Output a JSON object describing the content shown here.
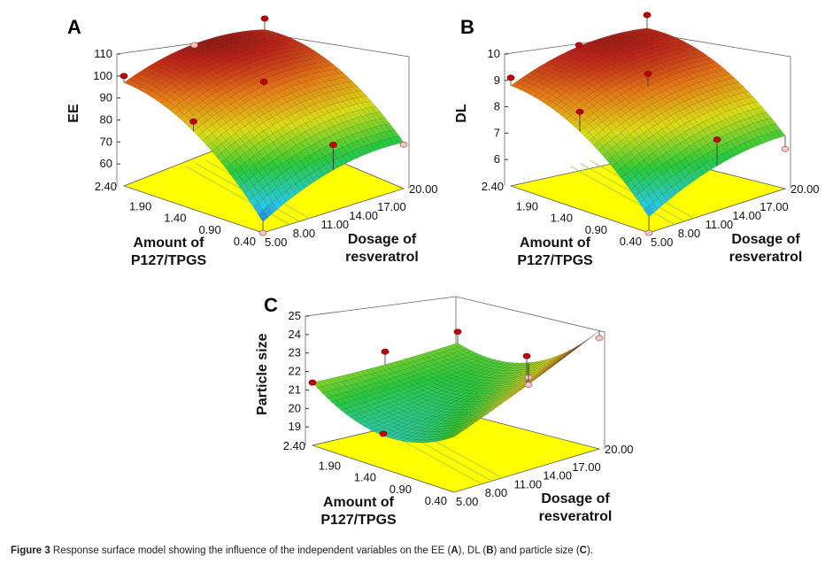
{
  "caption": {
    "figure_label": "Figure 3",
    "text_before": " Response surface model showing the influence of the independent variables on the EE (",
    "a": "A",
    "mid1": "), DL (",
    "b": "B",
    "mid2": ") and particle size (",
    "c": "C",
    "end": ")."
  },
  "chart_data": [
    {
      "panel": "A",
      "type": "surface3d",
      "zlabel": "EE",
      "xlabel": "Amount of P127/TPGS",
      "ylabel": "Dosage of resveratrol",
      "x_ticks": [
        "2.40",
        "1.90",
        "1.40",
        "0.90",
        "0.40"
      ],
      "y_ticks": [
        "5.00",
        "8.00",
        "11.00",
        "14.00",
        "17.00",
        "20.00"
      ],
      "z_ticks": [
        "60",
        "70",
        "80",
        "90",
        "100",
        "110"
      ],
      "xlim": [
        0.4,
        2.4
      ],
      "ylim": [
        5.0,
        20.0
      ],
      "zlim": [
        50,
        110
      ],
      "surface_corners": {
        "p2.40_r5": 95,
        "p0.40_r5": 55,
        "p0.40_r20": 75,
        "p2.40_r20": 95,
        "max": 102
      },
      "design_points": [
        {
          "x": 2.4,
          "y": 5,
          "z": 100
        },
        {
          "x": 1.4,
          "y": 5,
          "z": 90
        },
        {
          "x": 2.4,
          "y": 20,
          "z": 106
        },
        {
          "x": 1.4,
          "y": 12.5,
          "z": 98
        },
        {
          "x": 2.4,
          "y": 12.5,
          "z": 104
        },
        {
          "x": 0.4,
          "y": 12.5,
          "z": 80
        },
        {
          "x": 0.4,
          "y": 20,
          "z": 70
        },
        {
          "x": 0.4,
          "y": 5,
          "z": 50
        }
      ]
    },
    {
      "panel": "B",
      "type": "surface3d",
      "zlabel": "DL",
      "xlabel": "Amount of P127/TPGS",
      "ylabel": "Dosage of resveratrol",
      "x_ticks": [
        "2.40",
        "1.90",
        "1.40",
        "0.90",
        "0.40"
      ],
      "y_ticks": [
        "5.00",
        "8.00",
        "11.00",
        "14.00",
        "17.00",
        "20.00"
      ],
      "z_ticks": [
        "6",
        "7",
        "8",
        "9",
        "10"
      ],
      "xlim": [
        0.4,
        2.4
      ],
      "ylim": [
        5.0,
        20.0
      ],
      "zlim": [
        5,
        10
      ],
      "surface_corners": {
        "p2.40_r5": 8.8,
        "p0.40_r5": 5.7,
        "p0.40_r20": 7.0,
        "p2.40_r20": 9.5,
        "max": 9.6
      },
      "design_points": [
        {
          "x": 2.4,
          "y": 5,
          "z": 9.1
        },
        {
          "x": 1.4,
          "y": 5,
          "z": 8.7
        },
        {
          "x": 2.4,
          "y": 20,
          "z": 9.8
        },
        {
          "x": 1.4,
          "y": 12.5,
          "z": 9.3
        },
        {
          "x": 2.4,
          "y": 12.5,
          "z": 9.5
        },
        {
          "x": 0.4,
          "y": 12.5,
          "z": 7.7
        },
        {
          "x": 0.4,
          "y": 20,
          "z": 6.5
        },
        {
          "x": 0.4,
          "y": 5,
          "z": 5.0
        }
      ]
    },
    {
      "panel": "C",
      "type": "surface3d",
      "zlabel": "Particle size",
      "xlabel": "Amount of P127/TPGS",
      "ylabel": "Dosage of resveratrol",
      "x_ticks": [
        "2.40",
        "1.90",
        "1.40",
        "0.90",
        "0.40"
      ],
      "y_ticks": [
        "5.00",
        "8.00",
        "11.00",
        "14.00",
        "17.00",
        "20.00"
      ],
      "z_ticks": [
        "19",
        "20",
        "21",
        "22",
        "23",
        "24",
        "25"
      ],
      "xlim": [
        0.4,
        2.4
      ],
      "ylim": [
        5.0,
        20.0
      ],
      "zlim": [
        18,
        25
      ],
      "surface_corners": {
        "p2.40_r5": 21.4,
        "p0.40_r5": 21.0,
        "p0.40_r20": 24.0,
        "p2.40_r20": 21.8,
        "min": 19.8
      },
      "design_points": [
        {
          "x": 2.4,
          "y": 5,
          "z": 21.4
        },
        {
          "x": 1.4,
          "y": 5,
          "z": 19.9
        },
        {
          "x": 2.4,
          "y": 12.5,
          "z": 21.9
        },
        {
          "x": 2.4,
          "y": 20,
          "z": 21.8
        },
        {
          "x": 0.4,
          "y": 20,
          "z": 24.0
        },
        {
          "x": 0.4,
          "y": 12.5,
          "z": 24.2
        },
        {
          "x": 1.4,
          "y": 20,
          "z": 20.6
        },
        {
          "x": 1.4,
          "y": 20,
          "z": 20.2
        }
      ]
    }
  ]
}
